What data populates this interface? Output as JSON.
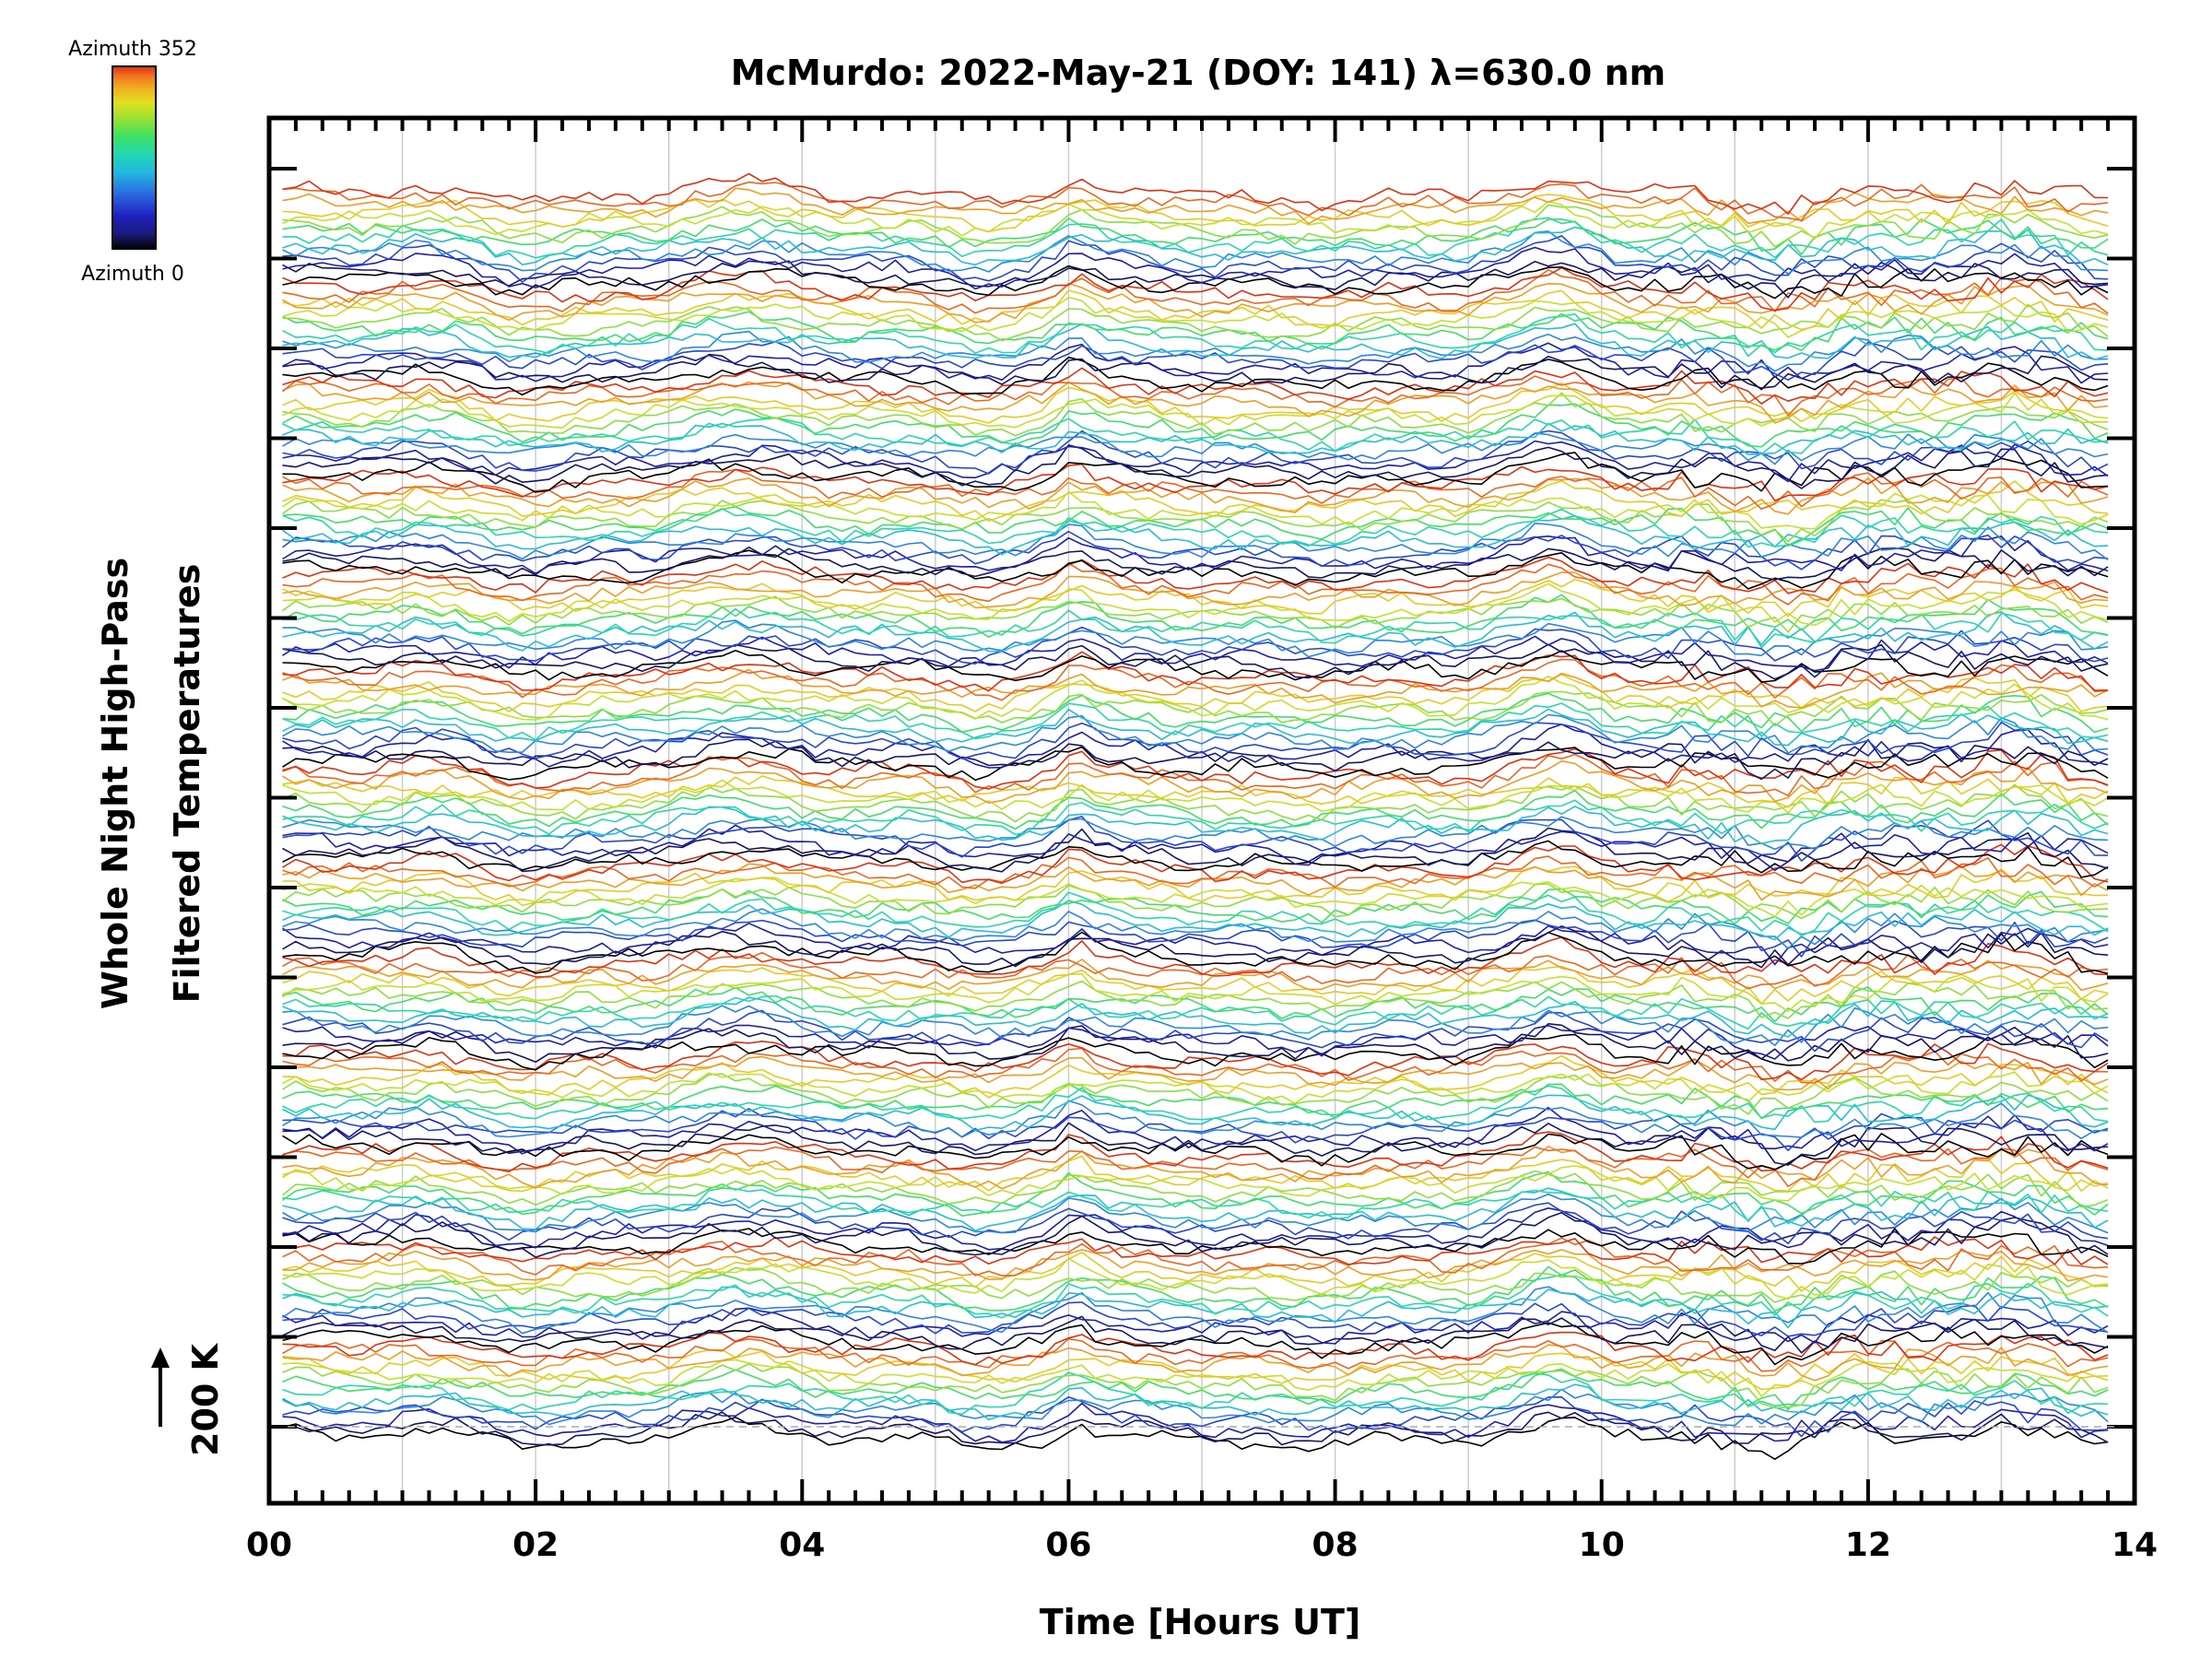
{
  "chart_data": {
    "type": "line",
    "title": "McMurdo: 2022-May-21 (DOY: 141) λ=630.0 nm",
    "xlabel": "Time [Hours UT]",
    "ylabel_line1": "Whole Night High-Pass",
    "ylabel_line2": "Filtered Temperatures",
    "scale_label": "200 K",
    "x_range": [
      0,
      14
    ],
    "x_ticks": [
      "00",
      "02",
      "04",
      "06",
      "08",
      "10",
      "12",
      "14"
    ],
    "x_minor_step_hours": 0.2,
    "y_major_tick_count": 15,
    "grid": "vertical dashed lines every hour",
    "colorbar": {
      "top_label": "Azimuth 352",
      "bottom_label": "Azimuth 0",
      "min_azimuth": 0,
      "max_azimuth": 352,
      "colormap": "rainbow (black-blue-cyan-green-yellow-orange-red)"
    },
    "series_layout": {
      "description": "Stacked traces: 13 groups of azimuth sweeps, each group offset vertically, with per-trace high-pass filtered temperature fluctuations",
      "groups": 13,
      "traces_per_group": 14,
      "time_start_hours": 0.1,
      "time_end_hours": 13.85,
      "time_step_hours": 0.1
    },
    "color_stops": [
      "#000000",
      "#1a1a7a",
      "#2020c0",
      "#2a6ae0",
      "#22b8e0",
      "#22d8b0",
      "#40e060",
      "#a0e030",
      "#e0e020",
      "#f0b020",
      "#f07020",
      "#e03010"
    ]
  }
}
